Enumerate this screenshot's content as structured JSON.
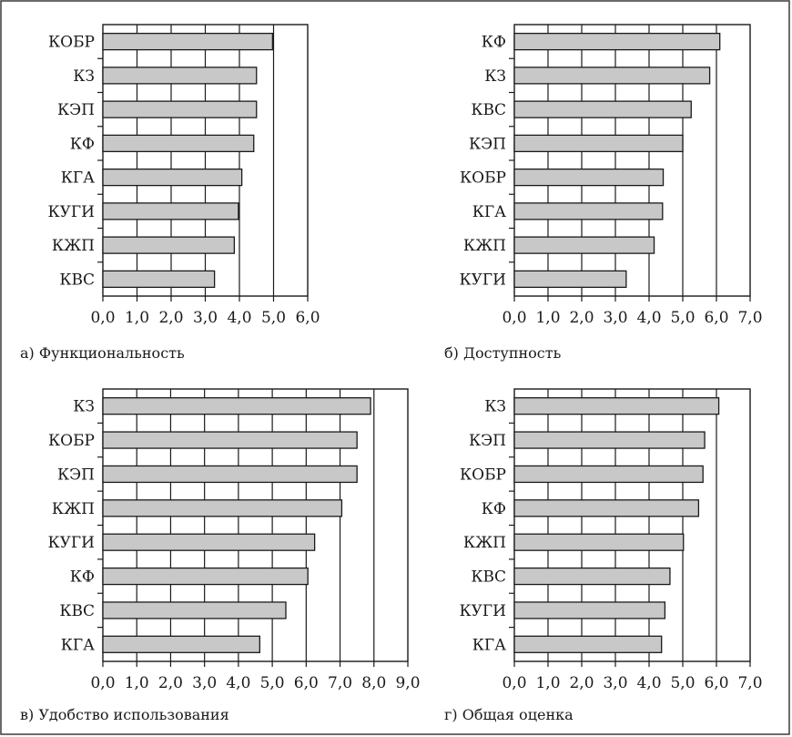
{
  "chart_data": [
    {
      "type": "bar",
      "orientation": "horizontal",
      "caption": "а) Функциональность",
      "categories": [
        "КОБР",
        "КЗ",
        "КЭП",
        "КФ",
        "КГА",
        "КУГИ",
        "КЖП",
        "КВС"
      ],
      "values": [
        4.97,
        4.5,
        4.5,
        4.42,
        4.07,
        3.97,
        3.85,
        3.27
      ],
      "ticks": [
        "0,0",
        "1,0",
        "2,0",
        "3,0",
        "4,0",
        "5,0",
        "6,0"
      ],
      "xlim": [
        0,
        6
      ],
      "grid": true,
      "bar_color": "#c8c8c8"
    },
    {
      "type": "bar",
      "orientation": "horizontal",
      "caption": "б) Доступность",
      "categories": [
        "КФ",
        "КЗ",
        "КВС",
        "КЭП",
        "КОБР",
        "КГА",
        "КЖП",
        "КУГИ"
      ],
      "values": [
        6.1,
        5.8,
        5.25,
        5.0,
        4.42,
        4.4,
        4.15,
        3.32
      ],
      "ticks": [
        "0,0",
        "1,0",
        "2,0",
        "3,0",
        "4,0",
        "5,0",
        "6,0",
        "7,0"
      ],
      "xlim": [
        0,
        7
      ],
      "grid": true,
      "bar_color": "#c8c8c8"
    },
    {
      "type": "bar",
      "orientation": "horizontal",
      "caption": "в) Удобство использования",
      "categories": [
        "КЗ",
        "КОБР",
        "КЭП",
        "КЖП",
        "КУГИ",
        "КФ",
        "КВС",
        "КГА"
      ],
      "values": [
        7.9,
        7.5,
        7.5,
        7.05,
        6.25,
        6.05,
        5.4,
        4.63
      ],
      "ticks": [
        "0,0",
        "1,0",
        "2,0",
        "3,0",
        "4,0",
        "5,0",
        "6,0",
        "7,0",
        "8,0",
        "9,0"
      ],
      "xlim": [
        0,
        9
      ],
      "grid": true,
      "bar_color": "#c8c8c8"
    },
    {
      "type": "bar",
      "orientation": "horizontal",
      "caption": "г) Общая оценка",
      "categories": [
        "КЗ",
        "КЭП",
        "КОБР",
        "КФ",
        "КЖП",
        "КВС",
        "КУГИ",
        "КГА"
      ],
      "values": [
        6.07,
        5.65,
        5.6,
        5.47,
        5.02,
        4.62,
        4.47,
        4.37
      ],
      "ticks": [
        "0,0",
        "1,0",
        "2,0",
        "3,0",
        "4,0",
        "5,0",
        "6,0",
        "7,0"
      ],
      "xlim": [
        0,
        7
      ],
      "grid": true,
      "bar_color": "#c8c8c8"
    }
  ]
}
